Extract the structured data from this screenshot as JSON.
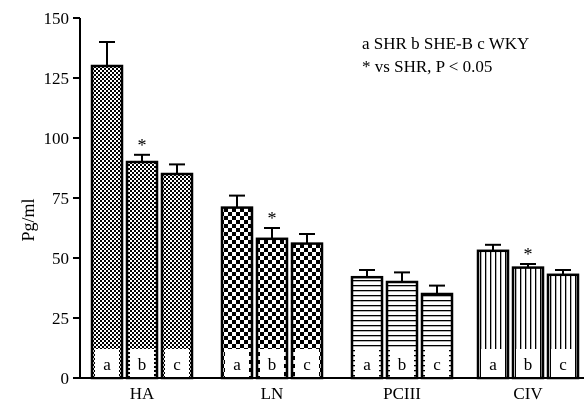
{
  "chart_data": {
    "type": "bar",
    "title": "",
    "xlabel": "",
    "ylabel": "Pg/ml",
    "ylim": [
      0,
      150
    ],
    "yticks": [
      0,
      25,
      50,
      75,
      100,
      125,
      150
    ],
    "grid": false,
    "groups": [
      "HA",
      "LN",
      "PCIII",
      "CIV"
    ],
    "bar_letters": [
      "a",
      "b",
      "c"
    ],
    "series": [
      {
        "name": "SHR",
        "letter": "a",
        "values": [
          130,
          71,
          42,
          53
        ],
        "errors": [
          10,
          5,
          3,
          2.5
        ]
      },
      {
        "name": "SHE-B",
        "letter": "b",
        "values": [
          90,
          58,
          40,
          46
        ],
        "errors": [
          3,
          4.5,
          4,
          1.5
        ]
      },
      {
        "name": "WKY",
        "letter": "c",
        "values": [
          85,
          56,
          35,
          43
        ],
        "errors": [
          4,
          4,
          3.5,
          2
        ]
      }
    ],
    "significant": [
      [
        false,
        false,
        false,
        false
      ],
      [
        true,
        true,
        false,
        true
      ],
      [
        false,
        false,
        false,
        false
      ]
    ],
    "significance_marker": "*",
    "group_patterns": [
      "dense-check",
      "checker",
      "horizontal-lines",
      "vertical-lines"
    ]
  },
  "legend": {
    "line1": "a SHR b SHE-B c WKY",
    "line2": "* vs SHR, P < 0.05"
  }
}
